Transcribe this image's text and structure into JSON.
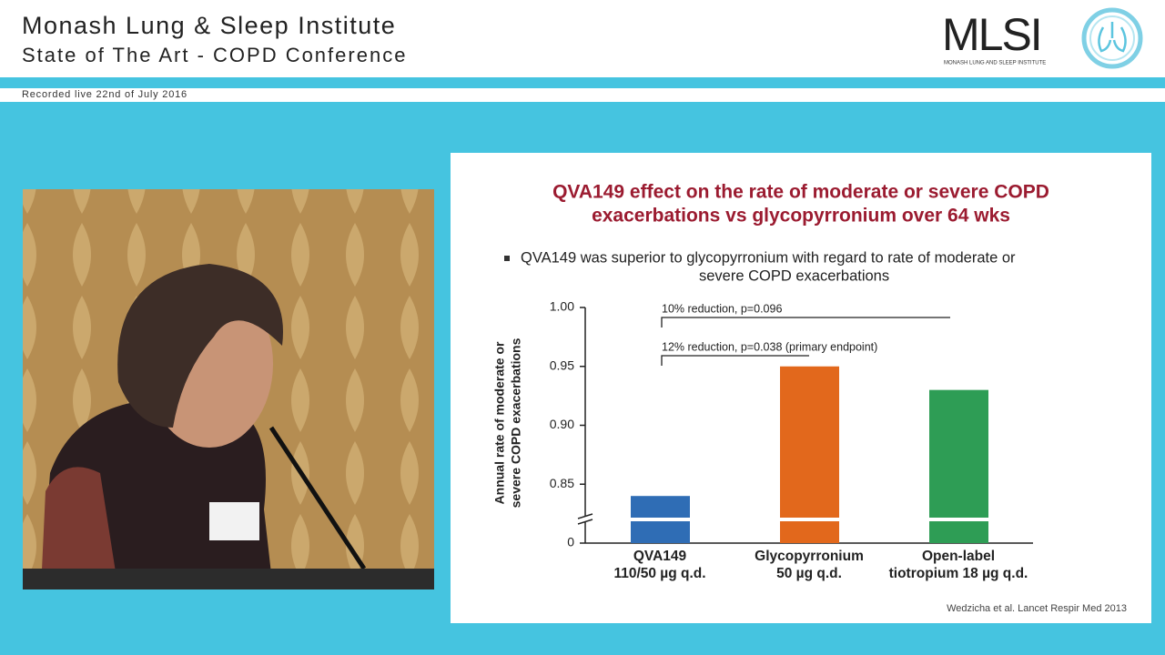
{
  "header": {
    "title": "Monash Lung & Sleep Institute",
    "subtitle": "State of The Art - COPD Conference",
    "recorded": "Recorded live 22nd of July 2016",
    "logo": "MLSI",
    "logo_subtitle": "MONASH LUNG AND SLEEP INSTITUTE"
  },
  "slide": {
    "bullet": [
      "QVA149 was superior to glycopyrronium with regard to rate of moderate or",
      "severe COPD exacerbations"
    ],
    "citation": "Wedzicha et al. Lancet Respir Med 2013"
  },
  "chart_data": {
    "type": "bar",
    "title": [
      "QVA149 effect on the rate of moderate or  severe COPD",
      "exacerbations vs glycopyrronium over 64 wks"
    ],
    "y_label": [
      "Annual rate of moderate or",
      "severe COPD exacerbations"
    ],
    "categories": [
      [
        "QVA149",
        "110/50 µg q.d."
      ],
      [
        "Glycopyrronium",
        "50 µg q.d."
      ],
      [
        "Open-label",
        "tiotropium 18 µg q.d."
      ]
    ],
    "values": [
      0.84,
      0.95,
      0.93
    ],
    "colors": [
      "#2f6db5",
      "#e2681c",
      "#2e9d55"
    ],
    "ylim": [
      0,
      1
    ],
    "yticks": [
      0,
      0.85,
      {
        "value": 0.9,
        "label": "0.90"
      },
      0.95,
      {
        "value": 1,
        "label": "1.00"
      }
    ],
    "axis_break": true,
    "annotations": [
      "10% reduction, p=0.096",
      "12% reduction, p=0.038 (primary endpoint)"
    ]
  }
}
